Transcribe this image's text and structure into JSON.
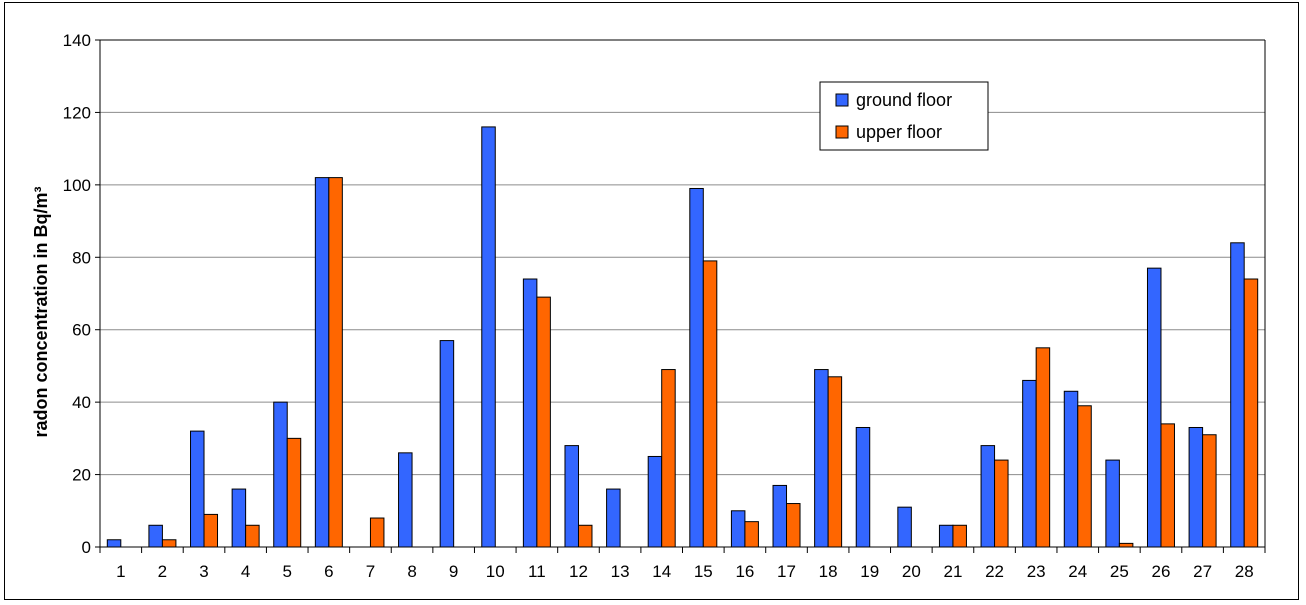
{
  "chart_data": {
    "type": "bar",
    "ylabel": "radon concentration in Bq/m³",
    "xlabel": "",
    "ylim": [
      0,
      140
    ],
    "yticks": [
      0,
      20,
      40,
      60,
      80,
      100,
      120,
      140
    ],
    "grid": true,
    "legend_position": "top-right",
    "categories": [
      "1",
      "2",
      "3",
      "4",
      "5",
      "6",
      "7",
      "8",
      "9",
      "10",
      "11",
      "12",
      "13",
      "14",
      "15",
      "16",
      "17",
      "18",
      "19",
      "20",
      "21",
      "22",
      "23",
      "24",
      "25",
      "26",
      "27",
      "28"
    ],
    "series": [
      {
        "name": "ground floor",
        "color": "#3366FF",
        "values": [
          2,
          6,
          32,
          16,
          40,
          102,
          0,
          26,
          57,
          116,
          74,
          28,
          16,
          25,
          99,
          10,
          17,
          49,
          33,
          11,
          6,
          28,
          46,
          43,
          24,
          77,
          33,
          84
        ]
      },
      {
        "name": "upper floor",
        "color": "#FF6600",
        "values": [
          0,
          2,
          9,
          6,
          30,
          102,
          8,
          0,
          0,
          0,
          69,
          6,
          0,
          49,
          79,
          7,
          12,
          47,
          0,
          0,
          6,
          24,
          55,
          39,
          1,
          34,
          31,
          74
        ]
      }
    ]
  }
}
